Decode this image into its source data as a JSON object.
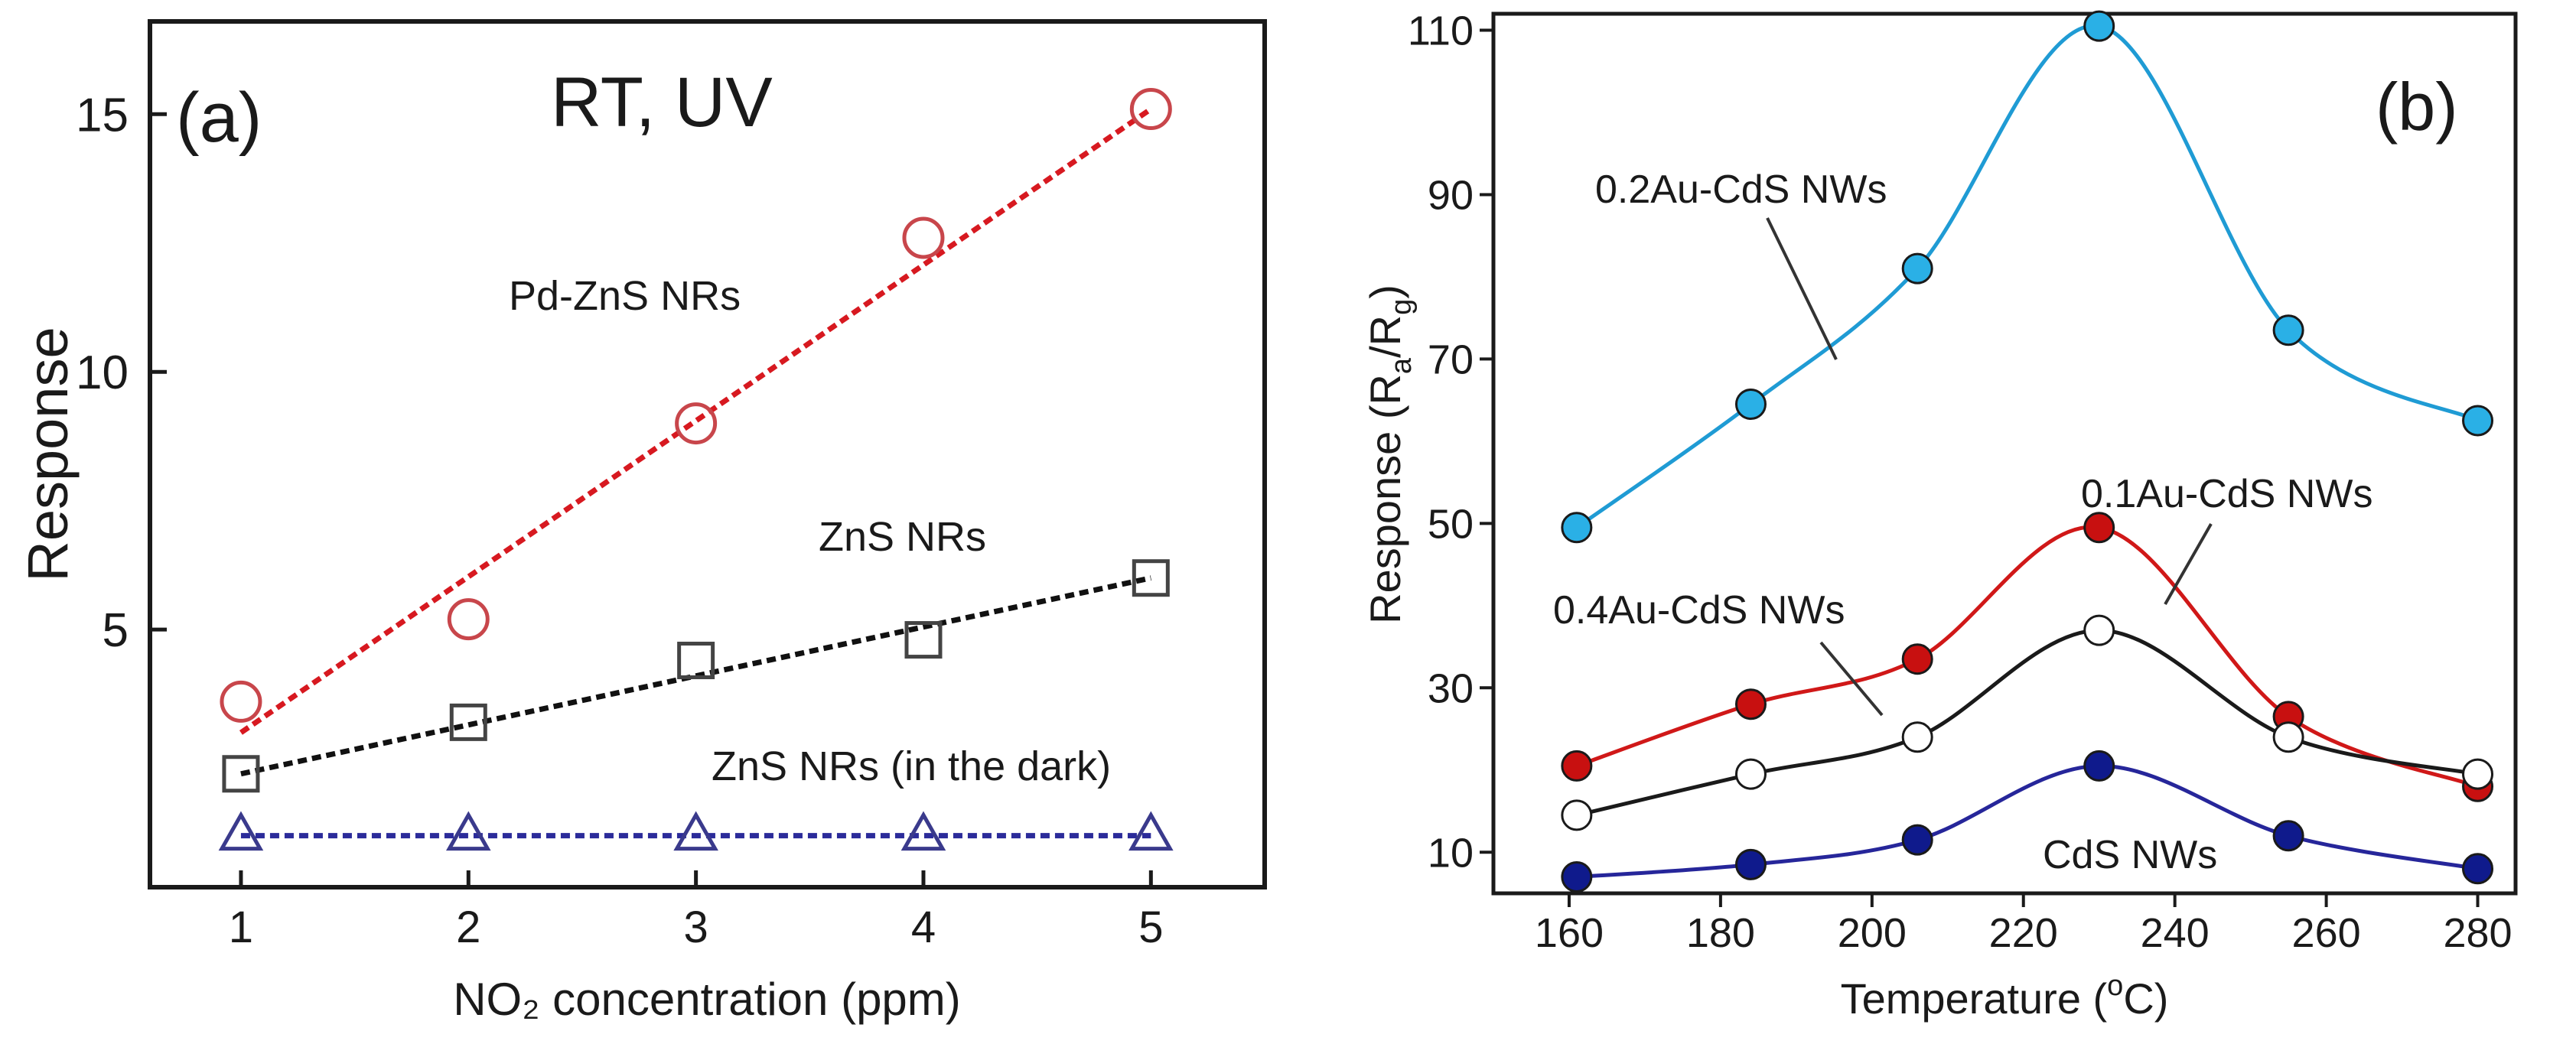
{
  "chart_data": [
    {
      "panel_label": "(a)",
      "type": "scatter",
      "title": "RT, UV",
      "xlabel": "NO₂ concentration (ppm)",
      "ylabel": "Response",
      "xlim": [
        0.6,
        5.5
      ],
      "ylim": [
        0.0,
        16.8
      ],
      "xticks": [
        1,
        2,
        3,
        4,
        5
      ],
      "yticks": [
        5,
        10,
        15
      ],
      "series": [
        {
          "name": "Pd-ZnS NRs",
          "marker": "circle",
          "color": "#c8464b",
          "line_color": "#d71920",
          "x": [
            1,
            2,
            3,
            4,
            5
          ],
          "values": [
            3.6,
            5.2,
            9.0,
            12.6,
            15.1
          ],
          "fit": [
            [
              1,
              3.0
            ],
            [
              5,
              15.1
            ]
          ]
        },
        {
          "name": "ZnS NRs",
          "marker": "square",
          "color": "#444444",
          "line_color": "#111111",
          "x": [
            1,
            2,
            3,
            4,
            5
          ],
          "values": [
            2.2,
            3.2,
            4.4,
            4.8,
            6.0
          ],
          "fit": [
            [
              1,
              2.2
            ],
            [
              5,
              6.0
            ]
          ]
        },
        {
          "name": "ZnS NRs (in the dark)",
          "marker": "triangle",
          "color": "#3a3a8c",
          "line_color": "#2b2b9a",
          "x": [
            1,
            2,
            3,
            4,
            5
          ],
          "values": [
            1.0,
            1.0,
            1.0,
            1.0,
            1.0
          ],
          "fit": [
            [
              1,
              1.0
            ],
            [
              5,
              1.0
            ]
          ]
        }
      ],
      "annotations": [
        "Pd-ZnS NRs",
        "ZnS NRs",
        "ZnS NRs (in the dark)"
      ]
    },
    {
      "panel_label": "(b)",
      "type": "line",
      "xlabel": "Temperature (°C)",
      "xlabel_parts": {
        "prefix": "Temperature (",
        "sup": "o",
        "suffix": "C)"
      },
      "ylabel": "Response (Ra/Rg)",
      "ylabel_parts": {
        "prefix": "Response (R",
        "sub1": "a",
        "mid": "/R",
        "sub2": "g",
        "suffix": ")"
      },
      "xlim": [
        150,
        285
      ],
      "ylim": [
        5,
        112
      ],
      "xticks": [
        160,
        180,
        200,
        220,
        240,
        260,
        280
      ],
      "yticks": [
        10,
        30,
        50,
        70,
        90,
        110
      ],
      "series": [
        {
          "name": "0.2Au-CdS NWs",
          "color": "#1f9bd4",
          "marker_fill": "#2ab0e6",
          "x": [
            161,
            184,
            206,
            230,
            255,
            280
          ],
          "values": [
            49.5,
            64.5,
            81.0,
            110.5,
            73.5,
            62.5
          ]
        },
        {
          "name": "0.1Au-CdS NWs",
          "color": "#d01818",
          "marker_fill": "#c81010",
          "x": [
            161,
            184,
            206,
            230,
            255,
            280
          ],
          "values": [
            20.5,
            28.0,
            33.5,
            49.5,
            26.5,
            18.0
          ]
        },
        {
          "name": "0.4Au-CdS NWs",
          "color": "#1a1a1a",
          "marker_fill": "#ffffff",
          "x": [
            161,
            184,
            206,
            230,
            255,
            280
          ],
          "values": [
            14.5,
            19.5,
            24.0,
            37.0,
            24.0,
            19.5
          ]
        },
        {
          "name": "CdS NWs",
          "color": "#26269a",
          "marker_fill": "#0f1a8c",
          "x": [
            161,
            184,
            206,
            230,
            255,
            280
          ],
          "values": [
            7.0,
            8.5,
            11.5,
            20.5,
            12.0,
            8.0
          ]
        }
      ],
      "annotations": [
        "0.2Au-CdS NWs",
        "0.1Au-CdS NWs",
        "0.4Au-CdS NWs",
        "CdS NWs"
      ]
    }
  ]
}
